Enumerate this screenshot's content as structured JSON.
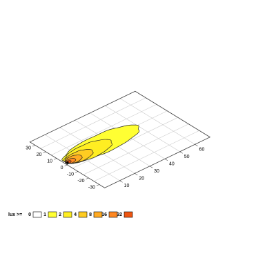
{
  "chart_data": {
    "type": "heatmap",
    "title": "",
    "xlabel": "",
    "ylabel": "",
    "x_ticks": [
      "10",
      "20",
      "30",
      "40",
      "50",
      "60"
    ],
    "y_ticks": [
      "30",
      "20",
      "10",
      "0",
      "-10",
      "-20",
      "-30"
    ],
    "xlim": [
      0,
      70
    ],
    "ylim": [
      -35,
      35
    ],
    "grid": true,
    "source_marker": {
      "x": 1.5,
      "y": 2.0,
      "symbol": "✱"
    },
    "contours": [
      {
        "level": 1,
        "color": "#ffff33",
        "center": [
          25.5,
          4.0
        ],
        "semi_x": 24.5,
        "semi_y": 9.6
      },
      {
        "level": 2,
        "color": "#ffee22",
        "center": [
          16.0,
          3.0
        ],
        "semi_x": 15.0,
        "semi_y": 7.5
      },
      {
        "level": 4,
        "color": "#ffcc22",
        "center": [
          9.5,
          2.4
        ],
        "semi_x": 8.6,
        "semi_y": 5.2
      },
      {
        "level": 8,
        "color": "#ffaa22",
        "center": [
          5.8,
          2.2
        ],
        "semi_x": 5.0,
        "semi_y": 3.6
      },
      {
        "level": 16,
        "color": "#ff8822",
        "center": [
          3.6,
          2.0
        ],
        "semi_x": 3.0,
        "semi_y": 2.2
      },
      {
        "level": 32,
        "color": "#ee5511",
        "center": [
          2.3,
          2.0
        ],
        "semi_x": 1.5,
        "semi_y": 1.2
      }
    ],
    "legend": {
      "label": "lux >=",
      "placement": "bottom-left",
      "entries": [
        {
          "label": "0",
          "color": "#ffffff"
        },
        {
          "label": "1",
          "color": "#ffff33"
        },
        {
          "label": "2",
          "color": "#ffee22"
        },
        {
          "label": "4",
          "color": "#ffcc22"
        },
        {
          "label": "8",
          "color": "#ffaa22"
        },
        {
          "label": "16",
          "color": "#ff8822"
        },
        {
          "label": "32",
          "color": "#ee5511"
        }
      ]
    }
  }
}
